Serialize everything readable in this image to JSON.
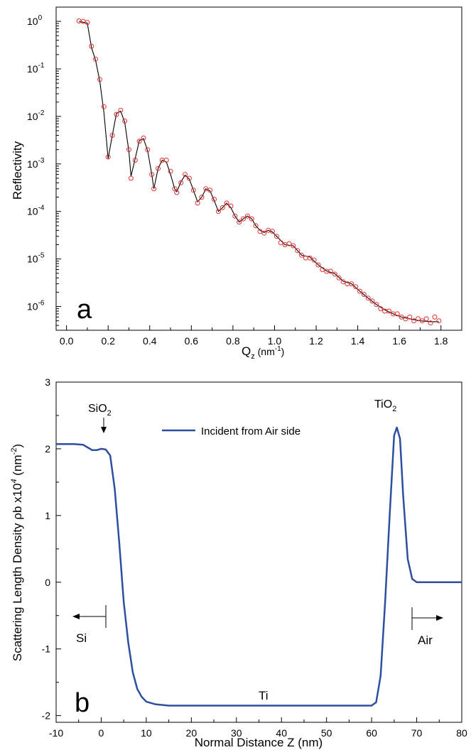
{
  "chart_data": [
    {
      "type": "scatter",
      "panel_label": "a",
      "ylabel": "Reflectivity",
      "xlabel_main": "Q",
      "xlabel_sub": "z",
      "xlabel_unit": " (nm",
      "xlabel_unit_exp": "-1",
      "xlabel_unit_close": ")",
      "xlim": [
        -0.05,
        1.9
      ],
      "ylim_log10": [
        -6.5,
        0.3
      ],
      "yscale": "log",
      "x_ticks": [
        "0.0",
        "0.2",
        "0.4",
        "0.6",
        "0.8",
        "1.0",
        "1.2",
        "1.4",
        "1.6",
        "1.8"
      ],
      "y_tick_base": "10",
      "y_tick_exps": [
        "0",
        "-1",
        "-2",
        "-3",
        "-4",
        "-5",
        "-6"
      ],
      "colors": {
        "data_marker": "#e03030",
        "fit_line": "#000000"
      },
      "series": [
        {
          "kind": "data",
          "points": [
            [
              0.06,
              1.02
            ],
            [
              0.08,
              1.0
            ],
            [
              0.1,
              0.95
            ],
            [
              0.12,
              0.3
            ],
            [
              0.14,
              0.16
            ],
            [
              0.16,
              0.06
            ],
            [
              0.18,
              0.016
            ],
            [
              0.2,
              0.0014
            ],
            [
              0.22,
              0.004
            ],
            [
              0.24,
              0.011
            ],
            [
              0.26,
              0.0135
            ],
            [
              0.28,
              0.008
            ],
            [
              0.3,
              0.002
            ],
            [
              0.31,
              0.0005
            ],
            [
              0.33,
              0.0012
            ],
            [
              0.35,
              0.003
            ],
            [
              0.37,
              0.0035
            ],
            [
              0.39,
              0.002
            ],
            [
              0.41,
              0.0006
            ],
            [
              0.42,
              0.0003
            ],
            [
              0.44,
              0.0008
            ],
            [
              0.46,
              0.0012
            ],
            [
              0.48,
              0.0012
            ],
            [
              0.5,
              0.0007
            ],
            [
              0.52,
              0.0003
            ],
            [
              0.53,
              0.00025
            ],
            [
              0.55,
              0.0004
            ],
            [
              0.57,
              0.0006
            ],
            [
              0.59,
              0.0005
            ],
            [
              0.61,
              0.00028
            ],
            [
              0.63,
              0.00015
            ],
            [
              0.65,
              0.0002
            ],
            [
              0.67,
              0.0003
            ],
            [
              0.69,
              0.00028
            ],
            [
              0.71,
              0.00018
            ],
            [
              0.73,
              0.0001
            ],
            [
              0.75,
              0.00012
            ],
            [
              0.77,
              0.00015
            ],
            [
              0.79,
              0.00013
            ],
            [
              0.81,
              8e-05
            ],
            [
              0.83,
              6e-05
            ],
            [
              0.85,
              7e-05
            ],
            [
              0.87,
              8e-05
            ],
            [
              0.89,
              7e-05
            ],
            [
              0.91,
              5e-05
            ],
            [
              0.93,
              3.8e-05
            ],
            [
              0.95,
              3.5e-05
            ],
            [
              0.97,
              4e-05
            ],
            [
              0.99,
              3.8e-05
            ],
            [
              1.01,
              3e-05
            ],
            [
              1.03,
              2.2e-05
            ],
            [
              1.05,
              2e-05
            ],
            [
              1.07,
              2.1e-05
            ],
            [
              1.09,
              1.9e-05
            ],
            [
              1.11,
              1.5e-05
            ],
            [
              1.13,
              1.2e-05
            ],
            [
              1.15,
              1.05e-05
            ],
            [
              1.17,
              1.05e-05
            ],
            [
              1.19,
              9.5e-06
            ],
            [
              1.21,
              7.5e-06
            ],
            [
              1.23,
              6e-06
            ],
            [
              1.25,
              5.5e-06
            ],
            [
              1.27,
              5.5e-06
            ],
            [
              1.29,
              4.8e-06
            ],
            [
              1.31,
              4e-06
            ],
            [
              1.33,
              3.3e-06
            ],
            [
              1.35,
              3e-06
            ],
            [
              1.37,
              3e-06
            ],
            [
              1.39,
              2.6e-06
            ],
            [
              1.41,
              2.1e-06
            ],
            [
              1.43,
              1.8e-06
            ],
            [
              1.45,
              1.5e-06
            ],
            [
              1.47,
              1.3e-06
            ],
            [
              1.49,
              1.1e-06
            ],
            [
              1.51,
              9e-07
            ],
            [
              1.53,
              8e-07
            ],
            [
              1.55,
              8e-07
            ],
            [
              1.57,
              7e-07
            ],
            [
              1.59,
              7e-07
            ],
            [
              1.61,
              6e-07
            ],
            [
              1.63,
              5.5e-07
            ],
            [
              1.65,
              6e-07
            ],
            [
              1.67,
              5e-07
            ],
            [
              1.69,
              5.5e-07
            ],
            [
              1.71,
              5e-07
            ],
            [
              1.73,
              5.5e-07
            ],
            [
              1.75,
              4.5e-07
            ],
            [
              1.77,
              6e-07
            ],
            [
              1.79,
              5e-07
            ]
          ]
        },
        {
          "kind": "fit",
          "points": [
            [
              0.06,
              1.0
            ],
            [
              0.1,
              0.92
            ],
            [
              0.12,
              0.28
            ],
            [
              0.14,
              0.15
            ],
            [
              0.16,
              0.055
            ],
            [
              0.18,
              0.012
            ],
            [
              0.2,
              0.0013
            ],
            [
              0.22,
              0.004
            ],
            [
              0.24,
              0.0115
            ],
            [
              0.26,
              0.013
            ],
            [
              0.28,
              0.0075
            ],
            [
              0.3,
              0.0018
            ],
            [
              0.31,
              0.00055
            ],
            [
              0.33,
              0.0013
            ],
            [
              0.35,
              0.0031
            ],
            [
              0.37,
              0.0034
            ],
            [
              0.39,
              0.0019
            ],
            [
              0.41,
              0.0006
            ],
            [
              0.42,
              0.0003
            ],
            [
              0.44,
              0.0008
            ],
            [
              0.46,
              0.0012
            ],
            [
              0.48,
              0.0011
            ],
            [
              0.5,
              0.0006
            ],
            [
              0.52,
              0.0003
            ],
            [
              0.53,
              0.00026
            ],
            [
              0.55,
              0.00042
            ],
            [
              0.57,
              0.00058
            ],
            [
              0.59,
              0.00048
            ],
            [
              0.61,
              0.00028
            ],
            [
              0.63,
              0.00016
            ],
            [
              0.65,
              0.0002
            ],
            [
              0.67,
              0.0003
            ],
            [
              0.69,
              0.00027
            ],
            [
              0.71,
              0.00017
            ],
            [
              0.73,
              0.0001
            ],
            [
              0.75,
              0.00012
            ],
            [
              0.77,
              0.00015
            ],
            [
              0.79,
              0.00012
            ],
            [
              0.81,
              8e-05
            ],
            [
              0.83,
              6e-05
            ],
            [
              0.85,
              7e-05
            ],
            [
              0.87,
              8e-05
            ],
            [
              0.89,
              7e-05
            ],
            [
              0.91,
              5e-05
            ],
            [
              0.93,
              4e-05
            ],
            [
              0.95,
              3.6e-05
            ],
            [
              0.97,
              4e-05
            ],
            [
              0.99,
              3.7e-05
            ],
            [
              1.01,
              3e-05
            ],
            [
              1.05,
              2e-05
            ],
            [
              1.09,
              1.9e-05
            ],
            [
              1.13,
              1.2e-05
            ],
            [
              1.17,
              1.1e-05
            ],
            [
              1.21,
              7.5e-06
            ],
            [
              1.25,
              5.6e-06
            ],
            [
              1.29,
              4.9e-06
            ],
            [
              1.33,
              3.4e-06
            ],
            [
              1.37,
              3e-06
            ],
            [
              1.41,
              2.1e-06
            ],
            [
              1.45,
              1.5e-06
            ],
            [
              1.49,
              1.1e-06
            ],
            [
              1.53,
              8.5e-07
            ],
            [
              1.57,
              7e-07
            ],
            [
              1.61,
              6e-07
            ],
            [
              1.65,
              5.5e-07
            ],
            [
              1.7,
              5e-07
            ],
            [
              1.75,
              4.8e-07
            ],
            [
              1.79,
              4.8e-07
            ]
          ]
        }
      ]
    },
    {
      "type": "line",
      "panel_label": "b",
      "ylabel": "Scattering Length Density ρb x10",
      "ylabel_exp": "4",
      "ylabel_unit": " (nm",
      "ylabel_unit_exp": "-2",
      "ylabel_unit_close": ")",
      "xlabel": "Normal Distance Z (nm)",
      "xlim": [
        -10,
        80
      ],
      "ylim": [
        -2.1,
        3
      ],
      "x_ticks": [
        "-10",
        "0",
        "10",
        "20",
        "30",
        "40",
        "50",
        "60",
        "70",
        "80"
      ],
      "y_ticks": [
        "-2",
        "-1",
        "0",
        "1",
        "2",
        "3"
      ],
      "colors": {
        "line": "#2e4fa0"
      },
      "legend": {
        "entries": [
          "Incident from Air side"
        ],
        "placement": "top-center"
      },
      "annotations": {
        "sio2_main": "SiO",
        "sio2_sub": "2",
        "tio2_main": "TiO",
        "tio2_sub": "2",
        "si": "Si",
        "ti": "Ti",
        "air": "Air"
      },
      "series": [
        {
          "name": "Incident from Air side",
          "points": [
            [
              -10,
              2.07
            ],
            [
              -6,
              2.07
            ],
            [
              -4,
              2.06
            ],
            [
              -3,
              2.02
            ],
            [
              -2,
              1.98
            ],
            [
              -1,
              1.98
            ],
            [
              0,
              2.0
            ],
            [
              1,
              1.99
            ],
            [
              2,
              1.9
            ],
            [
              3,
              1.4
            ],
            [
              4,
              0.6
            ],
            [
              5,
              -0.3
            ],
            [
              6,
              -0.9
            ],
            [
              7,
              -1.35
            ],
            [
              8,
              -1.6
            ],
            [
              9,
              -1.72
            ],
            [
              10,
              -1.79
            ],
            [
              12,
              -1.83
            ],
            [
              15,
              -1.85
            ],
            [
              25,
              -1.85
            ],
            [
              40,
              -1.85
            ],
            [
              55,
              -1.85
            ],
            [
              60,
              -1.85
            ],
            [
              61,
              -1.8
            ],
            [
              62,
              -1.4
            ],
            [
              63,
              -0.3
            ],
            [
              64,
              1.0
            ],
            [
              65,
              2.2
            ],
            [
              65.6,
              2.32
            ],
            [
              66.3,
              2.15
            ],
            [
              67,
              1.3
            ],
            [
              68,
              0.35
            ],
            [
              69,
              0.05
            ],
            [
              70,
              0.0
            ],
            [
              80,
              0.0
            ]
          ]
        }
      ]
    }
  ]
}
